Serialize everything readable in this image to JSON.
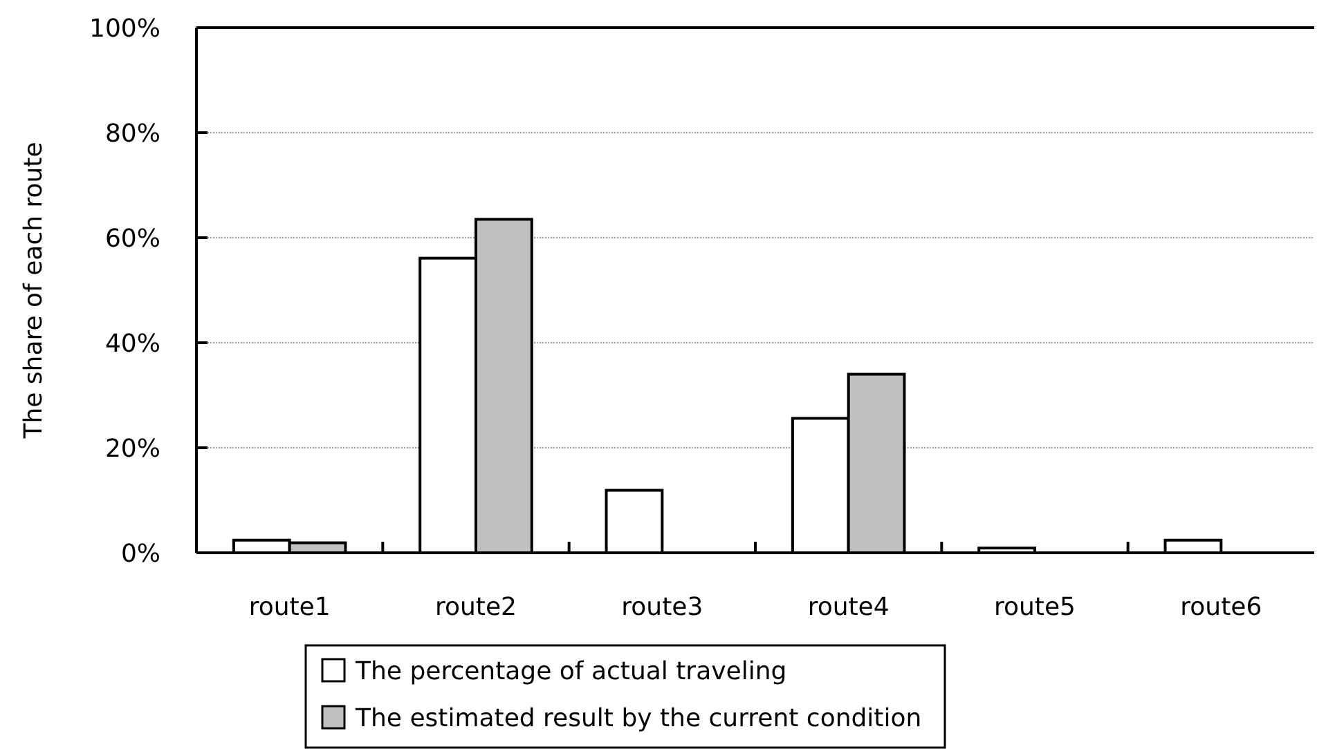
{
  "chart_data": {
    "type": "bar",
    "ylabel": "The share of each route",
    "categories": [
      "route1",
      "route2",
      "route3",
      "route4",
      "route5",
      "route6"
    ],
    "series": [
      {
        "name": "The percentage of actual traveling",
        "color": "#ffffff",
        "values": [
          2.4,
          56.1,
          11.9,
          25.6,
          0.9,
          2.4
        ]
      },
      {
        "name": "The estimated result by the current condition",
        "color": "#c0c0c0",
        "values": [
          1.9,
          63.5,
          0,
          34.0,
          0,
          0
        ]
      }
    ],
    "ylim": [
      0,
      100
    ],
    "yticks": [
      {
        "value": 0,
        "label": "0%"
      },
      {
        "value": 20,
        "label": "20%"
      },
      {
        "value": 40,
        "label": "40%"
      },
      {
        "value": 60,
        "label": "60%"
      },
      {
        "value": 80,
        "label": "80%"
      },
      {
        "value": 100,
        "label": "100%"
      }
    ],
    "grid": "y",
    "legend": "bottom"
  }
}
